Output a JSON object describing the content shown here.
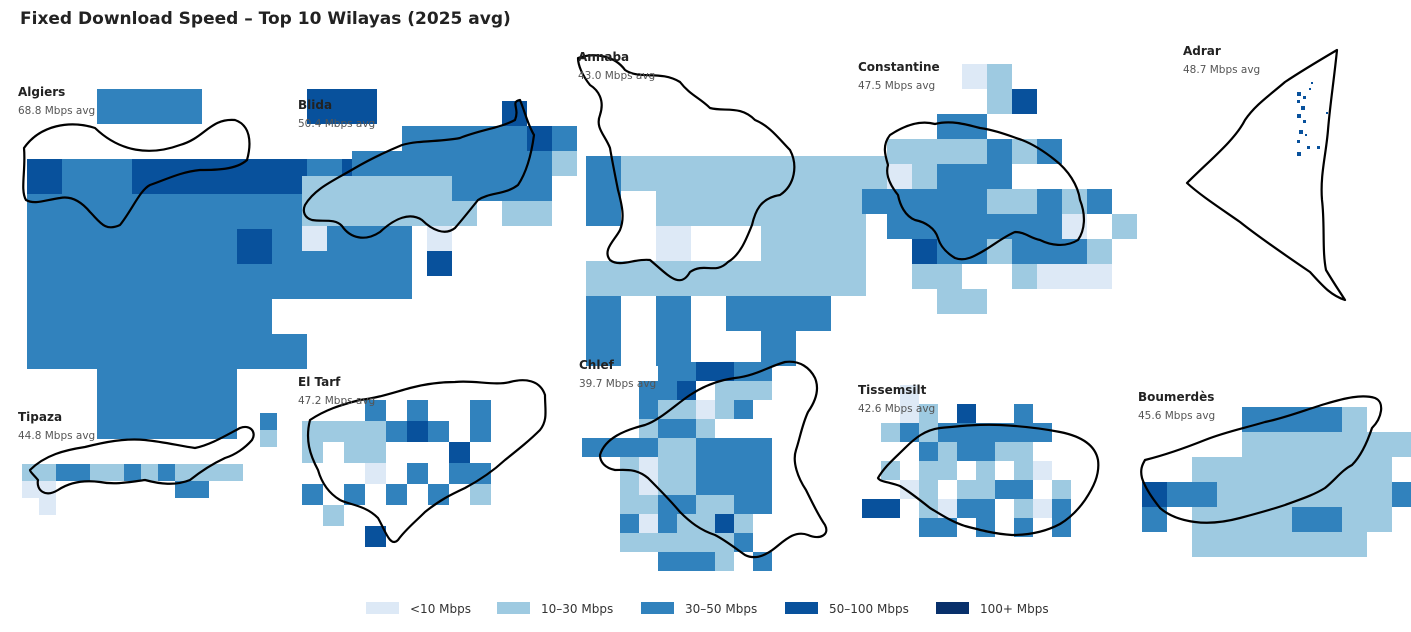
{
  "title": "Fixed Download Speed – Top 10 Wilayas (2025 avg)",
  "color_scale": {
    "classes": [
      {
        "label": "<10 Mbps",
        "color": "#dde9f6"
      },
      {
        "label": "10–30 Mbps",
        "color": "#9ecae1"
      },
      {
        "label": "30–50 Mbps",
        "color": "#3182bd"
      },
      {
        "label": "50–100 Mbps",
        "color": "#08519c"
      },
      {
        "label": "100+ Mbps",
        "color": "#08306b"
      }
    ]
  },
  "wilayas": [
    {
      "name": "Algiers",
      "avg": "68.8 Mbps avg",
      "grid": [
        "..333...44.",
        "...........",
        "4334444434..",
        "33333333333",
        "33333343333",
        "33333333333",
        "3333333....",
        "33333333...",
        "..3333.....",
        "..3333....."
      ]
    },
    {
      "name": "Blida",
      "avg": "50.4 Mbps avg",
      "grid": [
        "........4..",
        "....3333343",
        "..333333332",
        "2222223333.",
        "2222222.22.",
        "1..3.1.....",
        "...3.4....."
      ]
    },
    {
      "name": "Annaba",
      "avg": "43.0 Mbps avg",
      "grid": [
        "3222222222",
        "3.222222..",
        "..1..222..",
        "22222222..",
        "3.3.333...",
        "3.3..3...."
      ]
    },
    {
      "name": "Constantine",
      "avg": "47.5 Mbps avg",
      "grid": [
        "....12.....",
        ".....24....",
        "...33.....",
        ".2222323...",
        ".12333.....",
        "3333322323.",
        ".33333331.2",
        "..43323332",
        "..22..2111",
        "...22......"
      ]
    },
    {
      "name": "Adrar",
      "avg": "48.7 Mbps avg",
      "grid": []
    },
    {
      "name": "Tipaza",
      "avg": "44.8 Mbps avg",
      "grid": [
        "..............3",
        "..............2",
        "...............",
        "2233223232222..",
        "11.......33....",
        ".1.............."
      ]
    },
    {
      "name": "El Tarf",
      "avg": "47.2 Mbps avg",
      "grid": [
        "...3.3..3.",
        "2222343.3.",
        "2.22...4..",
        "...1.3.33.",
        "3.3.3.3.2.",
        ".2.......",
        "...4....."
      ]
    },
    {
      "name": "Chlef",
      "avg": "39.7 Mbps avg",
      "grid": [
        "....334433",
        "...334.222",
        "...322123.",
        "...2332...",
        "3333223333",
        "..21223333",
        "..21223333",
        "..22332233",
        "..3132242.",
        "..2222223.",
        "....3332.3"
      ]
    },
    {
      "name": "Tissemsilt",
      "avg": "42.6 Mbps avg",
      "grid": [
        "..1........",
        "..12.4..3..",
        ".232333333.",
        "...323322..",
        ".2.22.2.21.",
        "..12.2233.2",
        "44.2133.213",
        "...33.3.3.3"
      ]
    },
    {
      "name": "Boumerdès",
      "avg": "45.6 Mbps avg",
      "grid": [
        "....33332.",
        "....2222222",
        "..22222222.",
        "43322222223",
        "3.22223322.",
        "..2222222.."
      ]
    }
  ]
}
